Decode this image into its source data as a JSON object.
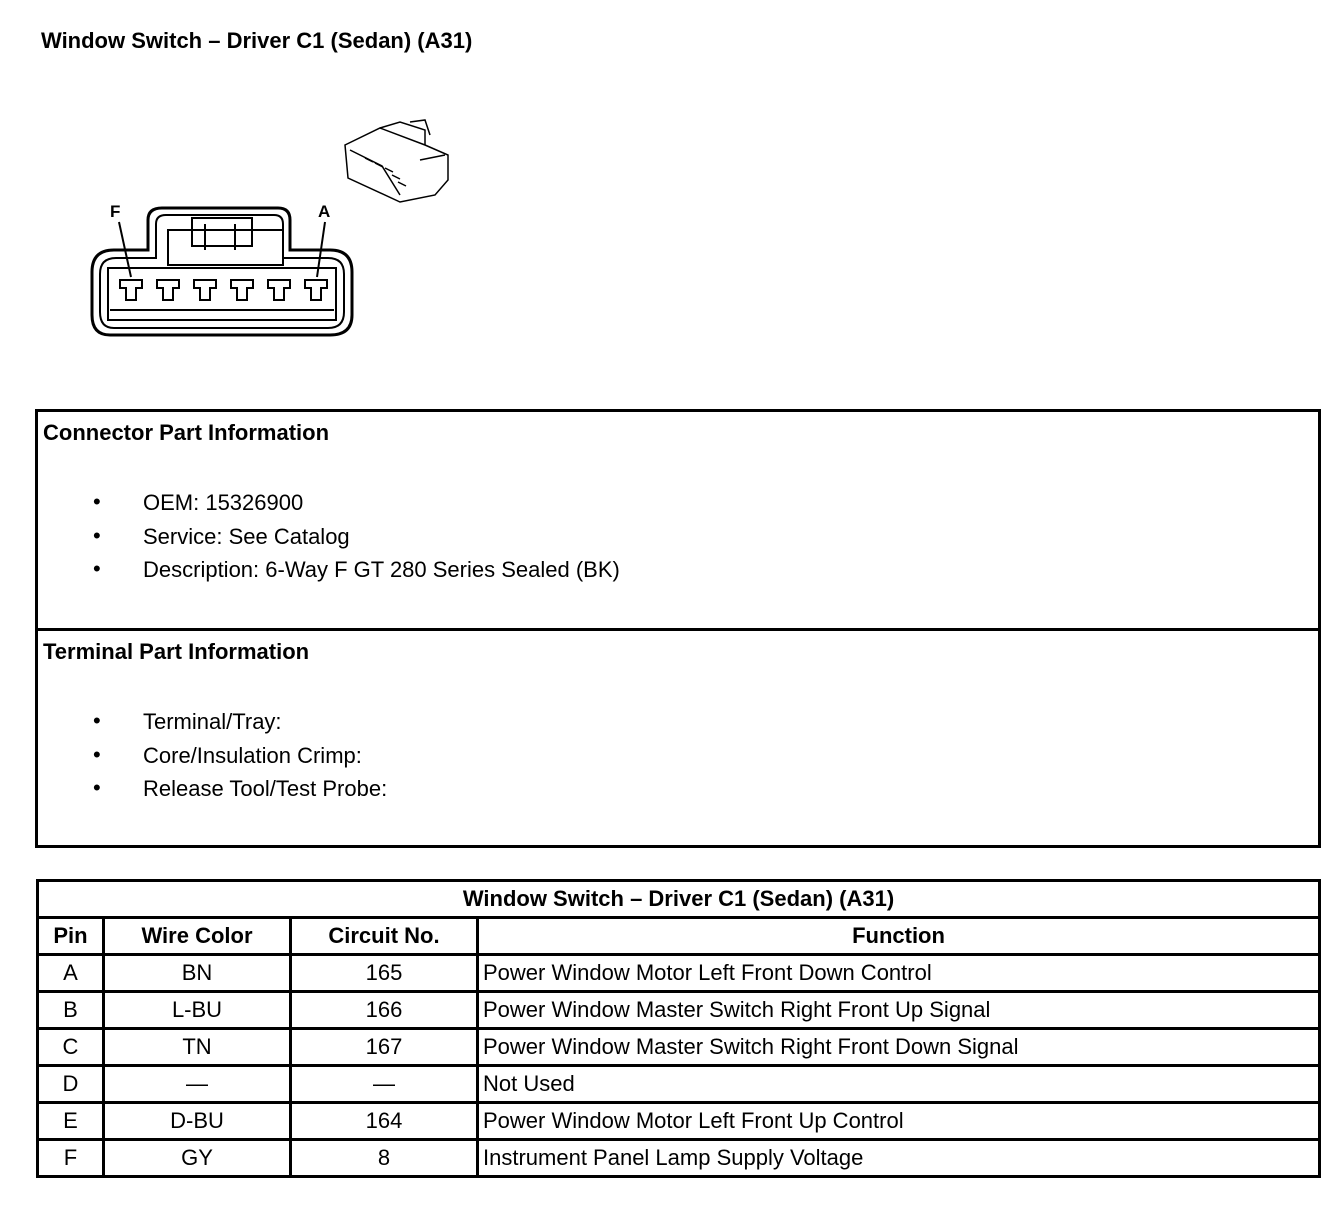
{
  "title": "Window Switch – Driver C1 (Sedan) (A31)",
  "connector_drawing": {
    "pin_labels": [
      "F",
      "A"
    ]
  },
  "connector_info": {
    "heading": "Connector Part Information",
    "items": [
      "OEM: 15326900",
      "Service: See Catalog",
      "Description: 6-Way F GT 280 Series Sealed (BK)"
    ]
  },
  "terminal_info": {
    "heading": "Terminal Part Information",
    "items": [
      "Terminal/Tray:",
      "Core/Insulation Crimp:",
      "Release Tool/Test Probe:"
    ]
  },
  "table": {
    "title": "Window Switch – Driver C1 (Sedan) (A31)",
    "headers": [
      "Pin",
      "Wire Color",
      "Circuit No.",
      "Function"
    ],
    "rows": [
      [
        "A",
        "BN",
        "165",
        "Power Window Motor Left Front Down Control"
      ],
      [
        "B",
        "L-BU",
        "166",
        "Power Window Master Switch Right Front Up Signal"
      ],
      [
        "C",
        "TN",
        "167",
        "Power Window Master Switch Right Front Down Signal"
      ],
      [
        "D",
        "—",
        "—",
        "Not Used"
      ],
      [
        "E",
        "D-BU",
        "164",
        "Power Window Motor Left Front Up Control"
      ],
      [
        "F",
        "GY",
        "8",
        "Instrument Panel Lamp Supply Voltage"
      ]
    ]
  }
}
